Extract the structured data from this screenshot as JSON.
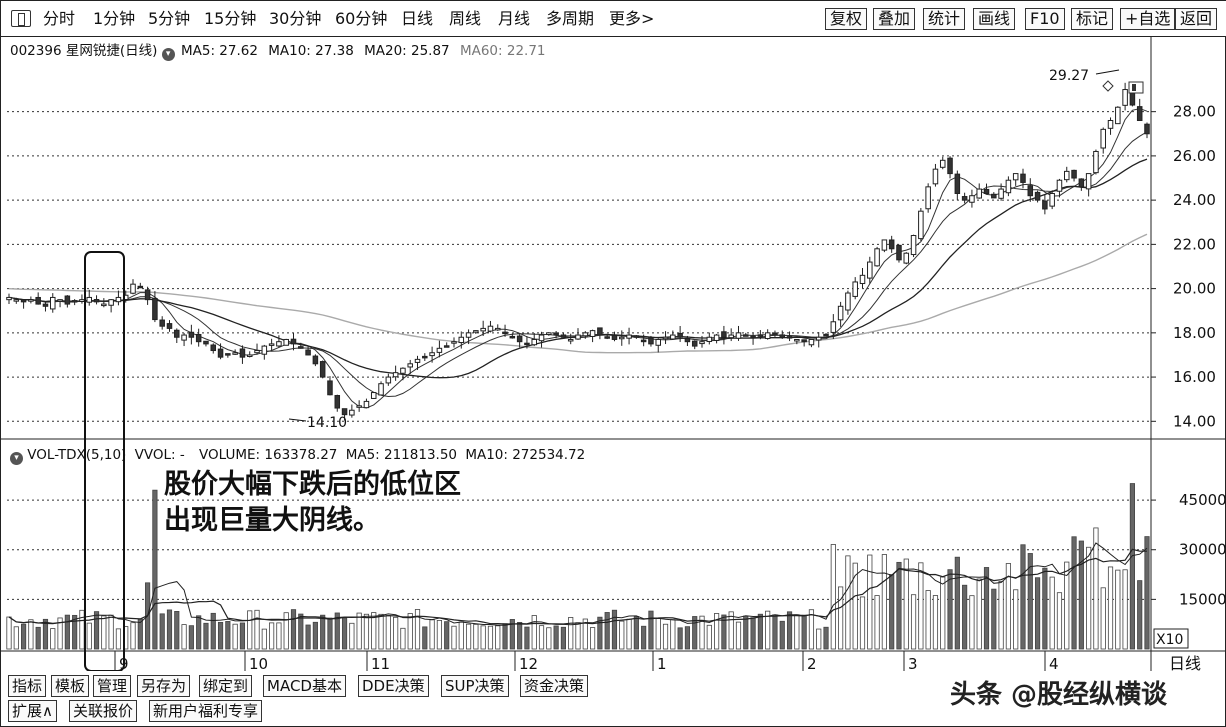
{
  "toolbar": {
    "left_items": [
      "分时",
      "1分钟",
      "5分钟",
      "15分钟",
      "30分钟",
      "60分钟",
      "日线",
      "周线",
      "月线",
      "多周期",
      "更多>"
    ],
    "right_items": [
      "复权",
      "叠加",
      "统计",
      "画线",
      "F10",
      "标记",
      "+自选",
      "返回"
    ]
  },
  "stock": {
    "code_name": "002396 星网锐捷(日线)",
    "ma5": "MA5: 27.62",
    "ma10": "MA10: 27.38",
    "ma20": "MA20: 25.87",
    "ma60": "MA60: 22.71"
  },
  "volume_info": {
    "indicator": "VOL-TDX(5,10)",
    "vvol": "VVOL: -",
    "volume": "VOLUME: 163378.27",
    "ma5": "MA5: 211813.50",
    "ma10": "MA10: 272534.72"
  },
  "annotation": {
    "line1": "股价大幅下跌后的低位区",
    "line2": "出现巨量大阴线。"
  },
  "watermark": "头条 @股经纵横谈",
  "tabs_row1": [
    "指标",
    "模板",
    "管理",
    "另存为",
    "绑定到",
    "MACD基本",
    "DDE决策",
    "SUP决策",
    "资金决策"
  ],
  "tabs_row2": [
    "扩展∧",
    "关联报价",
    "新用户福利专享"
  ],
  "chart_data": {
    "type": "candlestick",
    "price_axis": {
      "ticks": [
        "28.00",
        "26.00",
        "24.00",
        "22.00",
        "20.00",
        "18.00",
        "16.00",
        "14.00"
      ],
      "values": [
        28,
        26,
        24,
        22,
        20,
        18,
        16,
        14
      ],
      "range": [
        13.2,
        30.2
      ]
    },
    "volume_axis": {
      "ticks": [
        "45000",
        "30000",
        "15000"
      ],
      "values": [
        45000,
        30000,
        15000
      ],
      "range": [
        0,
        55000
      ],
      "unit": "X10"
    },
    "x_labels": [
      "9",
      "10",
      "11",
      "12",
      "1",
      "2",
      "3",
      "4"
    ],
    "period_label": "日线",
    "high_label": "29.27",
    "low_label": "14.10",
    "close_series": [
      19.6,
      19.5,
      19.4,
      19.5,
      19.3,
      19.2,
      19.6,
      19.5,
      19.3,
      19.4,
      19.5,
      19.6,
      19.4,
      19.3,
      19.5,
      19.6,
      19.7,
      20.2,
      20.1,
      19.5,
      18.6,
      18.3,
      18.2,
      17.8,
      17.9,
      17.8,
      17.6,
      17.5,
      17.2,
      16.9,
      17.0,
      17.1,
      16.9,
      17.0,
      17.2,
      17.4,
      17.5,
      17.6,
      17.7,
      17.5,
      17.3,
      17.0,
      16.6,
      16.0,
      15.2,
      14.6,
      14.3,
      14.5,
      14.7,
      14.9,
      15.3,
      15.7,
      16.0,
      16.2,
      16.4,
      16.6,
      16.8,
      16.9,
      17.1,
      17.3,
      17.4,
      17.6,
      17.8,
      18.0,
      18.1,
      18.2,
      18.3,
      18.2,
      18.0,
      17.8,
      17.6,
      17.5,
      17.7,
      17.9,
      18.0,
      17.9,
      17.8,
      17.7,
      17.9,
      18.0,
      18.1,
      17.9,
      17.8,
      17.7,
      17.8,
      17.9,
      17.8,
      17.6,
      17.5,
      17.7,
      17.8,
      17.9,
      17.8,
      17.6,
      17.4,
      17.6,
      17.8,
      17.9,
      17.8,
      17.9,
      18.0,
      17.9,
      17.8,
      17.9,
      18.0,
      17.9,
      17.8,
      17.8,
      17.7,
      17.6,
      17.7,
      17.8,
      17.9,
      18.5,
      19.2,
      19.8,
      20.3,
      20.6,
      21.2,
      21.8,
      22.2,
      21.8,
      21.3,
      21.6,
      22.4,
      23.5,
      24.6,
      25.4,
      25.8,
      25.2,
      24.3,
      24.0,
      24.2,
      24.5,
      24.3,
      24.1,
      24.5,
      24.9,
      25.2,
      24.8,
      24.2,
      24.0,
      23.6,
      24.3,
      24.9,
      25.3,
      25.0,
      24.6,
      25.2,
      26.2,
      27.2,
      27.6,
      28.2,
      29.0,
      28.3,
      27.6,
      27.0
    ]
  }
}
